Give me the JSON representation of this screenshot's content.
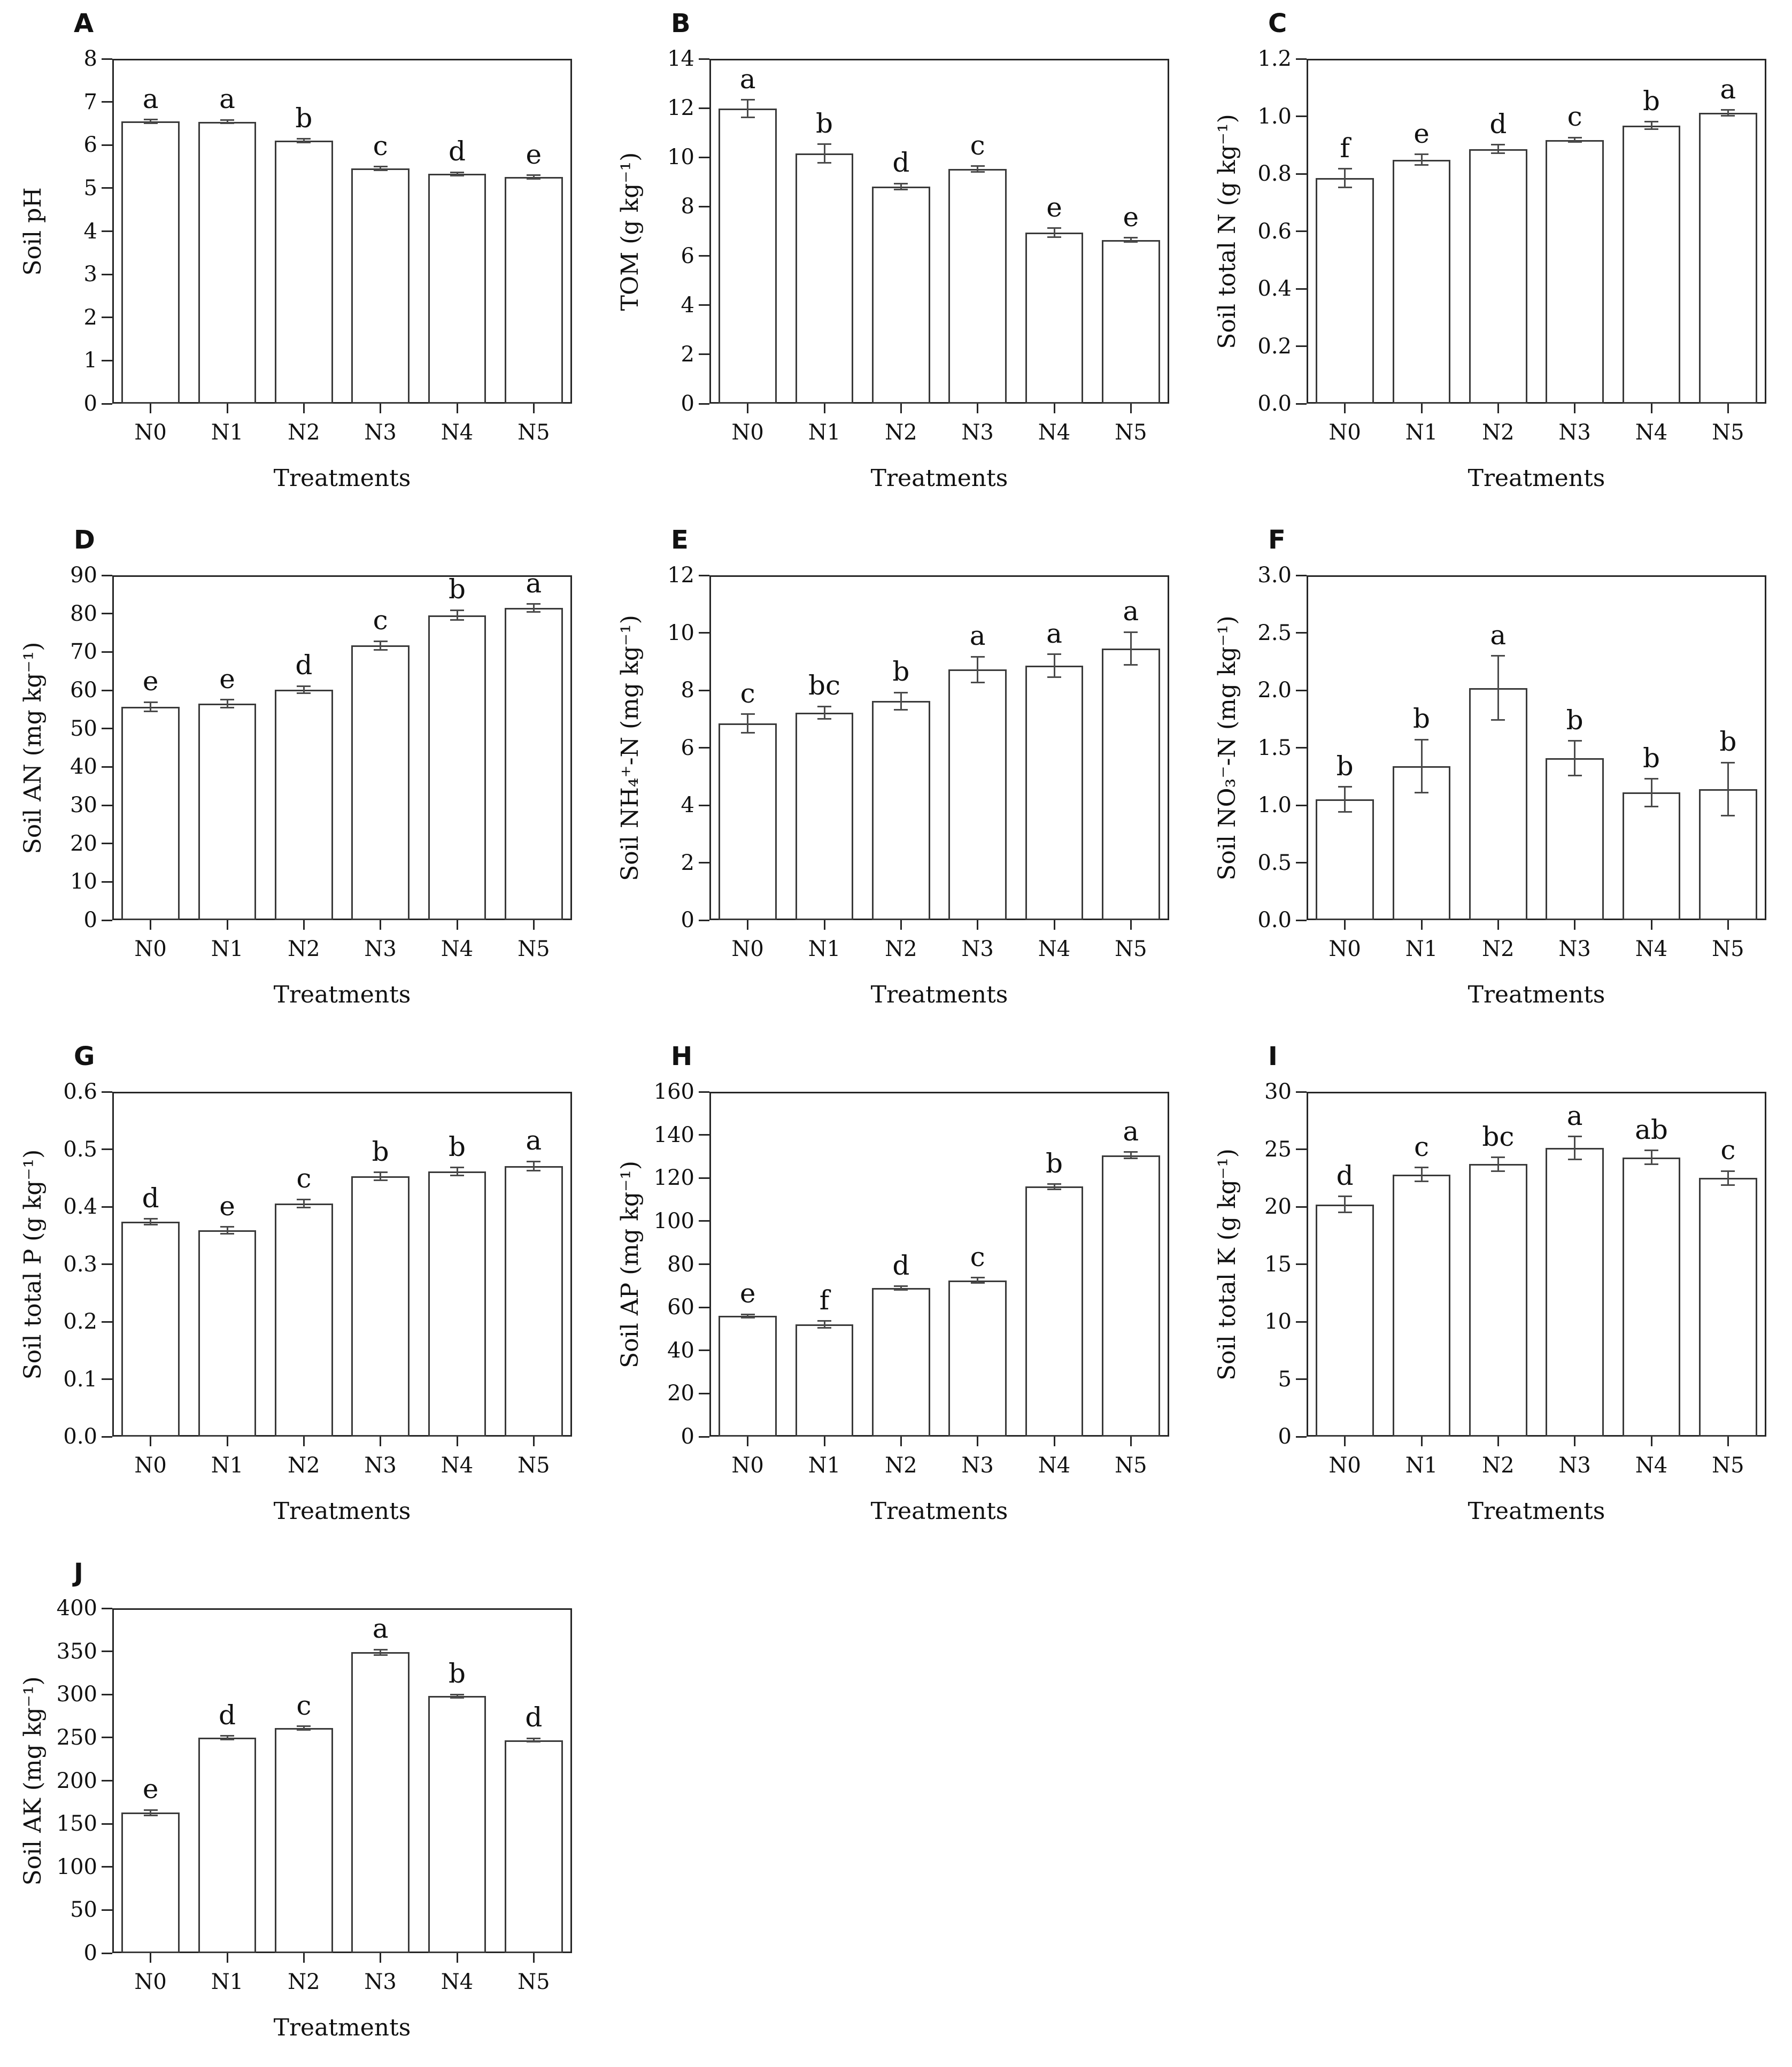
{
  "figure": {
    "x_axis_label": "Treatments",
    "categories": [
      "N0",
      "N1",
      "N2",
      "N3",
      "N4",
      "N5"
    ]
  },
  "style": {
    "background": "#ffffff",
    "axis_color": "#262626",
    "bar_fill": "#ffffff",
    "bar_border": "#3a3a3a",
    "error_bar_color": "#4a4a4a",
    "text_color": "#111111"
  },
  "chart_data": [
    {
      "type": "bar",
      "panel_letter": "A",
      "ylabel": "Soil pH",
      "xlabel": "Treatments",
      "categories": [
        "N0",
        "N1",
        "N2",
        "N3",
        "N4",
        "N5"
      ],
      "values": [
        6.55,
        6.54,
        6.1,
        5.46,
        5.33,
        5.26
      ],
      "errors": [
        0.04,
        0.04,
        0.04,
        0.04,
        0.04,
        0.04
      ],
      "sig_letters": [
        "a",
        "a",
        "b",
        "c",
        "d",
        "e"
      ],
      "ylim": [
        0,
        8
      ],
      "ytick_step": 1,
      "y_decimals": 0,
      "grid": false
    },
    {
      "type": "bar",
      "panel_letter": "B",
      "ylabel": "TOM (g kg⁻¹)",
      "xlabel": "Treatments",
      "categories": [
        "N0",
        "N1",
        "N2",
        "N3",
        "N4",
        "N5"
      ],
      "values": [
        11.98,
        10.15,
        8.82,
        9.52,
        6.95,
        6.65
      ],
      "errors": [
        0.35,
        0.38,
        0.12,
        0.12,
        0.18,
        0.08
      ],
      "sig_letters": [
        "a",
        "b",
        "d",
        "c",
        "e",
        "e"
      ],
      "ylim": [
        0,
        14
      ],
      "ytick_step": 2,
      "y_decimals": 0,
      "grid": false
    },
    {
      "type": "bar",
      "panel_letter": "C",
      "ylabel": "Soil total N (g kg⁻¹)",
      "xlabel": "Treatments",
      "categories": [
        "N0",
        "N1",
        "N2",
        "N3",
        "N4",
        "N5"
      ],
      "values": [
        0.785,
        0.849,
        0.886,
        0.918,
        0.968,
        1.012
      ],
      "errors": [
        0.032,
        0.018,
        0.015,
        0.008,
        0.013,
        0.01
      ],
      "sig_letters": [
        "f",
        "e",
        "d",
        "c",
        "b",
        "a"
      ],
      "ylim": [
        0,
        1.2
      ],
      "ytick_step": 0.2,
      "y_decimals": 1,
      "grid": false
    },
    {
      "type": "bar",
      "panel_letter": "D",
      "ylabel": "Soil AN (mg kg⁻¹)",
      "xlabel": "Treatments",
      "categories": [
        "N0",
        "N1",
        "N2",
        "N3",
        "N4",
        "N5"
      ],
      "values": [
        55.7,
        56.5,
        60.2,
        71.7,
        79.6,
        81.5
      ],
      "errors": [
        1.2,
        1.0,
        0.9,
        1.1,
        1.3,
        1.0
      ],
      "sig_letters": [
        "e",
        "e",
        "d",
        "c",
        "b",
        "a"
      ],
      "ylim": [
        0,
        90
      ],
      "ytick_step": 10,
      "y_decimals": 0,
      "grid": false
    },
    {
      "type": "bar",
      "panel_letter": "E",
      "ylabel": "Soil NH₄⁺-N (mg kg⁻¹)",
      "xlabel": "Treatments",
      "categories": [
        "N0",
        "N1",
        "N2",
        "N3",
        "N4",
        "N5"
      ],
      "values": [
        6.85,
        7.22,
        7.62,
        8.72,
        8.85,
        9.45
      ],
      "errors": [
        0.32,
        0.22,
        0.3,
        0.45,
        0.4,
        0.57
      ],
      "sig_letters": [
        "c",
        "bc",
        "b",
        "a",
        "a",
        "a"
      ],
      "ylim": [
        0,
        12
      ],
      "ytick_step": 2,
      "y_decimals": 0,
      "grid": false
    },
    {
      "type": "bar",
      "panel_letter": "F",
      "ylabel": "Soil NO₃⁻-N (mg kg⁻¹)",
      "xlabel": "Treatments",
      "categories": [
        "N0",
        "N1",
        "N2",
        "N3",
        "N4",
        "N5"
      ],
      "values": [
        1.05,
        1.34,
        2.02,
        1.41,
        1.11,
        1.14
      ],
      "errors": [
        0.11,
        0.23,
        0.28,
        0.15,
        0.12,
        0.23
      ],
      "sig_letters": [
        "b",
        "b",
        "a",
        "b",
        "b",
        "b"
      ],
      "ylim": [
        0,
        3.0
      ],
      "ytick_step": 0.5,
      "y_decimals": 1,
      "grid": false
    },
    {
      "type": "bar",
      "panel_letter": "G",
      "ylabel": "Soil total P (g kg⁻¹)",
      "xlabel": "Treatments",
      "categories": [
        "N0",
        "N1",
        "N2",
        "N3",
        "N4",
        "N5"
      ],
      "values": [
        0.374,
        0.359,
        0.406,
        0.453,
        0.461,
        0.471
      ],
      "errors": [
        0.005,
        0.006,
        0.007,
        0.007,
        0.007,
        0.008
      ],
      "sig_letters": [
        "d",
        "e",
        "c",
        "b",
        "b",
        "a"
      ],
      "ylim": [
        0,
        0.6
      ],
      "ytick_step": 0.1,
      "y_decimals": 1,
      "grid": false
    },
    {
      "type": "bar",
      "panel_letter": "H",
      "ylabel": "Soil AP (mg kg⁻¹)",
      "xlabel": "Treatments",
      "categories": [
        "N0",
        "N1",
        "N2",
        "N3",
        "N4",
        "N5"
      ],
      "values": [
        56,
        52,
        69,
        72.5,
        116,
        130.5
      ],
      "errors": [
        0.8,
        1.6,
        0.8,
        1.2,
        1.2,
        1.5
      ],
      "sig_letters": [
        "e",
        "f",
        "d",
        "c",
        "b",
        "a"
      ],
      "ylim": [
        0,
        160
      ],
      "ytick_step": 20,
      "y_decimals": 0,
      "grid": false
    },
    {
      "type": "bar",
      "panel_letter": "I",
      "ylabel": "Soil total K (g kg⁻¹)",
      "xlabel": "Treatments",
      "categories": [
        "N0",
        "N1",
        "N2",
        "N3",
        "N4",
        "N5"
      ],
      "values": [
        20.2,
        22.8,
        23.7,
        25.1,
        24.3,
        22.5
      ],
      "errors": [
        0.7,
        0.6,
        0.6,
        1.0,
        0.6,
        0.6
      ],
      "sig_letters": [
        "d",
        "c",
        "bc",
        "a",
        "ab",
        "c"
      ],
      "ylim": [
        0,
        30
      ],
      "ytick_step": 5,
      "y_decimals": 0,
      "grid": false
    },
    {
      "type": "bar",
      "panel_letter": "J",
      "ylabel": "Soil AK (mg kg⁻¹)",
      "xlabel": "Treatments",
      "categories": [
        "N0",
        "N1",
        "N2",
        "N3",
        "N4",
        "N5"
      ],
      "values": [
        163,
        250,
        261,
        349,
        298,
        247
      ],
      "errors": [
        3,
        2,
        2,
        3,
        2,
        2
      ],
      "sig_letters": [
        "e",
        "d",
        "c",
        "a",
        "b",
        "d"
      ],
      "ylim": [
        0,
        400
      ],
      "ytick_step": 50,
      "y_decimals": 0,
      "grid": false
    }
  ]
}
